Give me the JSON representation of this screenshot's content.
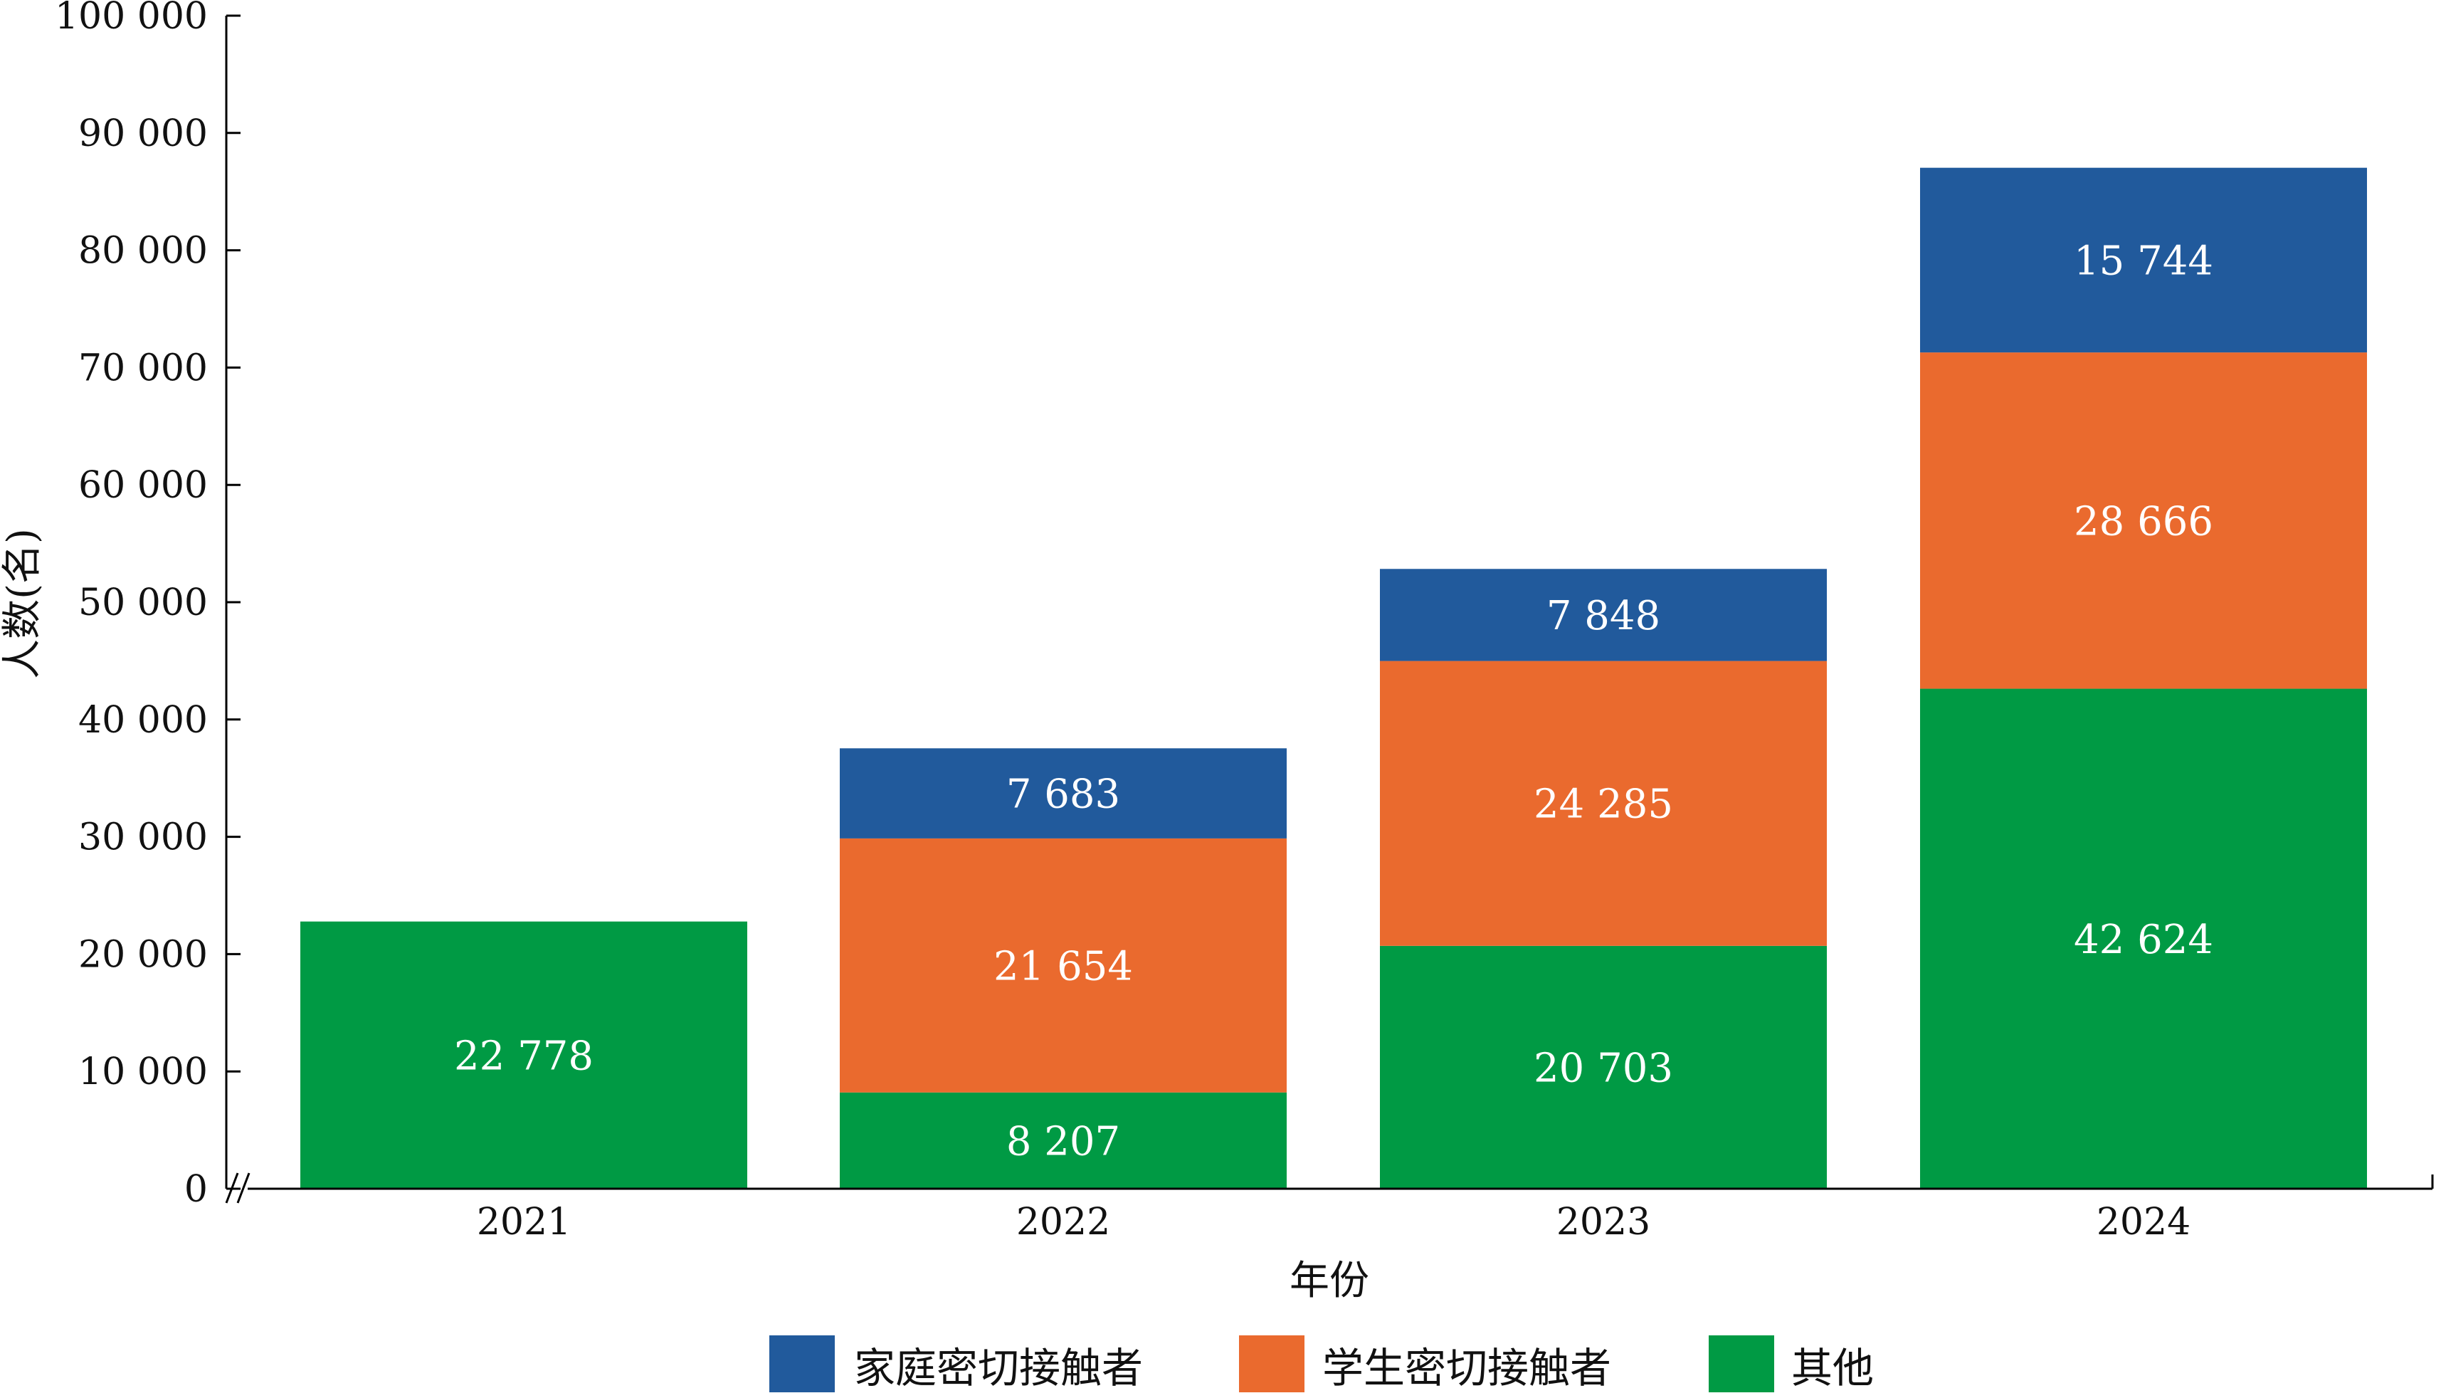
{
  "chart_data": {
    "type": "bar",
    "stacked": true,
    "categories": [
      "2021",
      "2022",
      "2023",
      "2024"
    ],
    "series": [
      {
        "name": "其他",
        "color": "#009a44",
        "values": [
          22778,
          8207,
          20703,
          42624
        ],
        "labels": [
          "22 778",
          "8 207",
          "20 703",
          "42 624"
        ]
      },
      {
        "name": "学生密切接触者",
        "color": "#ea6a2e",
        "values": [
          0,
          21654,
          24285,
          28666
        ],
        "labels": [
          "",
          "21 654",
          "24 285",
          "28 666"
        ]
      },
      {
        "name": "家庭密切接触者",
        "color": "#215a9c",
        "values": [
          0,
          7683,
          7848,
          15744
        ],
        "labels": [
          "",
          "7 683",
          "7 848",
          "15 744"
        ]
      }
    ],
    "legend_order": [
      "家庭密切接触者",
      "学生密切接触者",
      "其他"
    ],
    "legend_position": "bottom",
    "xlabel": "年份",
    "ylabel": "人数(名)",
    "ylim": [
      0,
      100000
    ],
    "yticks": [
      0,
      10000,
      20000,
      30000,
      40000,
      50000,
      60000,
      70000,
      80000,
      90000,
      100000
    ],
    "ytick_labels": [
      "0",
      "10 000",
      "20 000",
      "30 000",
      "40 000",
      "50 000",
      "60 000",
      "70 000",
      "80 000",
      "90 000",
      "100 000"
    ],
    "grid": false,
    "axis_break": true
  }
}
